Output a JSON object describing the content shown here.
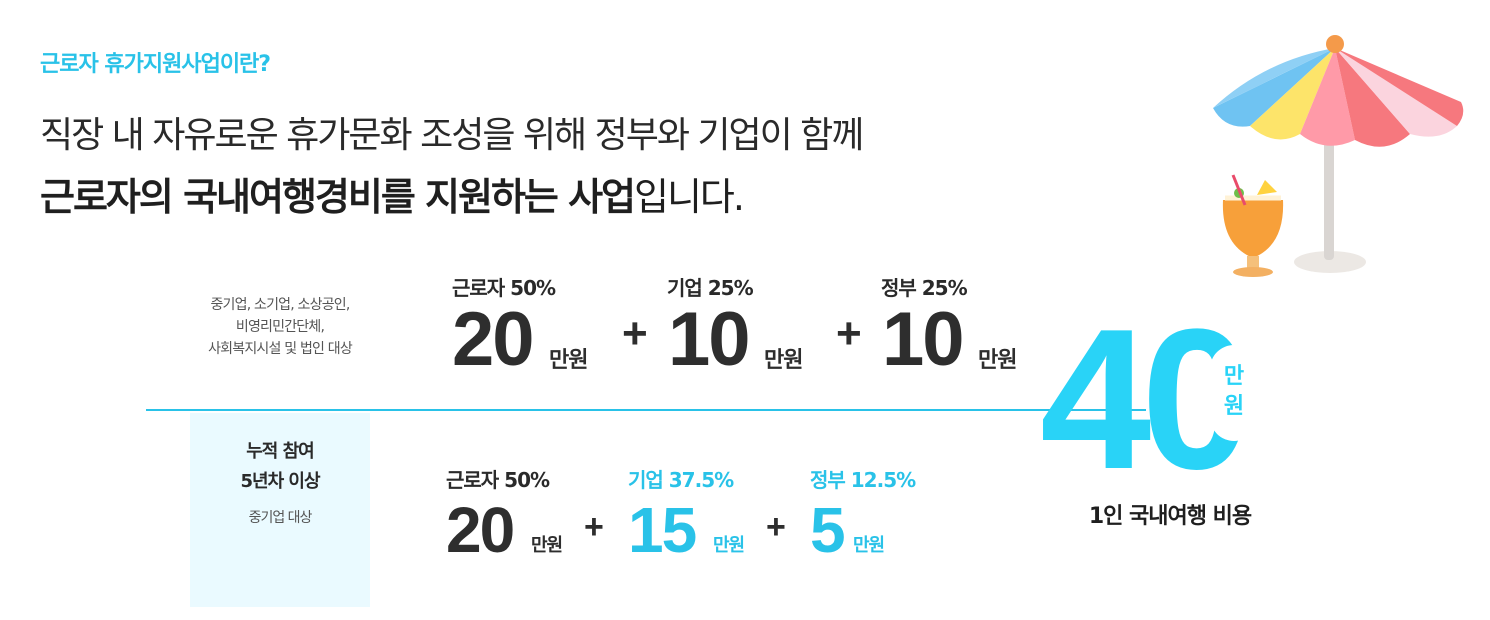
{
  "intro": {
    "eyebrow": "근로자 휴가지원사업이란?",
    "headline_line1": "직장 내 자유로운 휴가문화 조성을 위해 정부와 기업이 함께",
    "headline_line2_bold": "근로자의 국내여행경비를 지원하는 사업",
    "headline_line2_rest": "입니다."
  },
  "tier_general": {
    "target_lines": [
      "중기업, 소기업, 소상공인,",
      "비영리민간단체,",
      "사회복지시설 및 법인 대상"
    ],
    "items": [
      {
        "label": "근로자 50%",
        "amount": "20",
        "unit": "만원"
      },
      {
        "label": "기업 25%",
        "amount": "10",
        "unit": "만원"
      },
      {
        "label": "정부 25%",
        "amount": "10",
        "unit": "만원"
      }
    ],
    "operator": "+"
  },
  "tier_longterm": {
    "title_lines": [
      "누적 참여",
      "5년차 이상"
    ],
    "subtitle": "중기업 대상",
    "items": [
      {
        "label": "근로자 50%",
        "amount": "20",
        "unit": "만원"
      },
      {
        "label": "기업 37.5%",
        "amount": "15",
        "unit": "만원"
      },
      {
        "label": "정부 12.5%",
        "amount": "5",
        "unit": "만원"
      }
    ],
    "operator": "+"
  },
  "total": {
    "amount": "40",
    "unit_chars": [
      "만",
      "원"
    ],
    "caption": "1인 국내여행 비용"
  },
  "illustration": {
    "name": "beach-umbrella-with-tropical-drink"
  },
  "colors": {
    "accent": "#29c2e8",
    "total": "#29d3f7",
    "panel_bg": "#eafaff",
    "text": "#2a2a2a"
  }
}
